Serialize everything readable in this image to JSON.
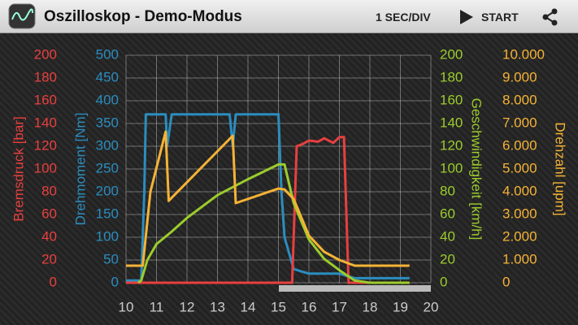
{
  "app_bar": {
    "title": "Oszilloskop - Demo-Modus",
    "time_per_div": "1 SEC/DIV",
    "start": "START"
  },
  "chart_data": {
    "type": "line",
    "grid": true,
    "xlim": [
      10,
      20
    ],
    "xticks": [
      10,
      11,
      12,
      13,
      14,
      15,
      16,
      17,
      18,
      19,
      20
    ],
    "axes": [
      {
        "label": "Bremsdruck [bar]",
        "color": "#e8403f",
        "ylim": [
          0,
          200
        ],
        "yticks": [
          0,
          20,
          40,
          60,
          80,
          100,
          120,
          140,
          160,
          180,
          200
        ]
      },
      {
        "label": "Drehmoment [Nm]",
        "color": "#2b8dbf",
        "ylim": [
          0,
          500
        ],
        "yticks": [
          0,
          50,
          100,
          150,
          200,
          250,
          300,
          350,
          400,
          450,
          500
        ]
      },
      {
        "label": "Geschwindigkeit [km/h]",
        "color": "#9ccc2c",
        "ylim": [
          0,
          200
        ],
        "yticks": [
          0,
          20,
          40,
          60,
          80,
          100,
          120,
          140,
          160,
          180,
          200
        ]
      },
      {
        "label": "Drehzahl [upm]",
        "color": "#f5b335",
        "ylim": [
          0,
          10000
        ],
        "yticks": [
          0,
          {
            "value": 1000,
            "label": "1.000"
          },
          {
            "value": 2000,
            "label": "2.000"
          },
          {
            "value": 3000,
            "label": "3.000"
          },
          {
            "value": 4000,
            "label": "4.000"
          },
          {
            "value": 5000,
            "label": "5.000"
          },
          {
            "value": 6000,
            "label": "6.000"
          },
          {
            "value": 7000,
            "label": "7.000"
          },
          {
            "value": 8000,
            "label": "8.000"
          },
          {
            "value": 9000,
            "label": "9.000"
          },
          {
            "value": 10000,
            "label": "10.000"
          }
        ]
      }
    ],
    "series": [
      {
        "axis": 1,
        "color": "#2b8dbf",
        "x": [
          10,
          10.5,
          10.6,
          10.65,
          11.3,
          11.35,
          11.5,
          13.4,
          13.5,
          13.6,
          15.0,
          15.1,
          15.2,
          15.5,
          16,
          17,
          17.5,
          19.3
        ],
        "values": [
          5,
          5,
          200,
          370,
          370,
          300,
          370,
          370,
          300,
          370,
          370,
          200,
          100,
          30,
          20,
          20,
          10,
          10
        ]
      },
      {
        "axis": 0,
        "color": "#e8403f",
        "x": [
          10,
          15.45,
          15.6,
          15.8,
          16.0,
          16.3,
          16.5,
          16.8,
          17.0,
          17.15,
          17.3,
          19.3
        ],
        "values": [
          0,
          0,
          120,
          122,
          125,
          124,
          127,
          123,
          128,
          128,
          0,
          0
        ]
      },
      {
        "axis": 2,
        "color": "#9ccc2c",
        "x": [
          10.4,
          10.5,
          10.7,
          11,
          11.5,
          12,
          13,
          14,
          15,
          15.2,
          15.5,
          16,
          16.5,
          17,
          17.5,
          18,
          19.3
        ],
        "values": [
          0,
          2,
          20,
          34,
          45,
          57,
          77,
          91,
          104,
          104,
          70,
          38,
          21,
          11,
          2,
          0,
          0
        ]
      },
      {
        "axis": 3,
        "color": "#f5b335",
        "x": [
          10,
          10.55,
          10.8,
          11.3,
          11.4,
          13.5,
          13.6,
          15,
          15.2,
          15.5,
          16,
          16.5,
          17,
          17.5,
          19.3
        ],
        "values": [
          750,
          750,
          4000,
          6640,
          3600,
          6460,
          3500,
          4140,
          4100,
          3680,
          2070,
          1360,
          1000,
          750,
          750
        ]
      }
    ]
  }
}
